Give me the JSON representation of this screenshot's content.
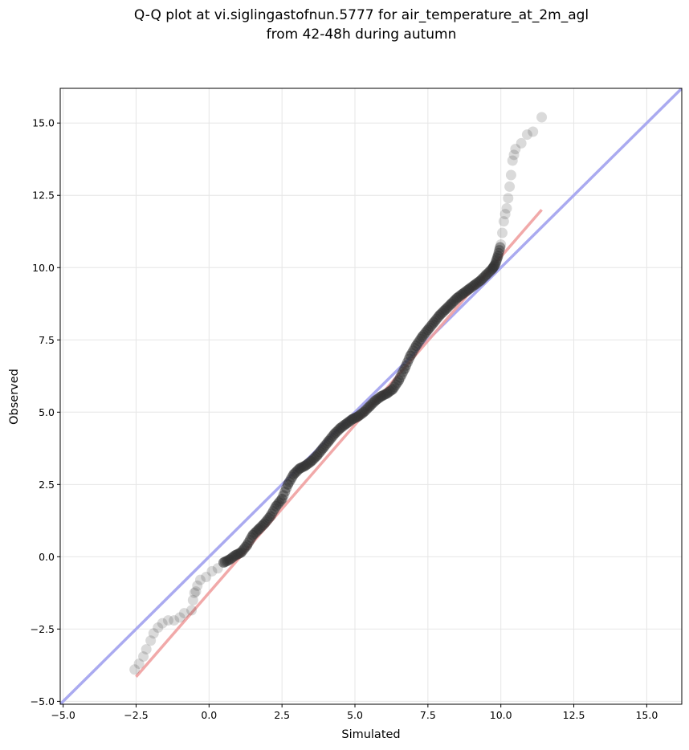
{
  "chart_data": {
    "type": "scatter",
    "title": [
      "Q-Q plot at vi.siglingastofnun.5777 for air_temperature_at_2m_agl",
      "from 42-48h during autumn"
    ],
    "xlabel": "Simulated",
    "ylabel": "Observed",
    "xlim": [
      -5.1,
      16.2
    ],
    "ylim": [
      -5.1,
      16.2
    ],
    "x_ticks": [
      -5.0,
      -2.5,
      0.0,
      2.5,
      5.0,
      7.5,
      10.0,
      12.5,
      15.0
    ],
    "y_ticks": [
      -5.0,
      -2.5,
      0.0,
      2.5,
      5.0,
      7.5,
      10.0,
      12.5,
      15.0
    ],
    "x_tick_labels": [
      "−5.0",
      "−2.5",
      "0.0",
      "2.5",
      "5.0",
      "7.5",
      "10.0",
      "12.5",
      "15.0"
    ],
    "y_tick_labels": [
      "−5.0",
      "−2.5",
      "0.0",
      "2.5",
      "5.0",
      "7.5",
      "10.0",
      "12.5",
      "15.0"
    ],
    "grid": true,
    "colors": {
      "points": "#333333",
      "identity_line": "#aaaaf0",
      "fit_line": "#f0a0a0"
    },
    "identity_line": {
      "x": [
        -5.1,
        16.2
      ],
      "y": [
        -5.1,
        16.2
      ]
    },
    "fit_line": {
      "x": [
        -2.5,
        11.4
      ],
      "y": [
        -4.15,
        12.0
      ]
    },
    "quantiles": {
      "x": [
        -2.55,
        -2.4,
        -2.25,
        -2.15,
        -2.0,
        -1.9,
        -1.75,
        -1.6,
        -1.4,
        -1.2,
        -1.0,
        -0.85,
        -0.6,
        -0.55,
        -0.5,
        -0.45,
        -0.4,
        -0.3,
        -0.1,
        0.1,
        0.3,
        0.5,
        0.7,
        0.9,
        1.1,
        1.3,
        1.5,
        1.7,
        1.9,
        2.1,
        2.3,
        2.5,
        2.7,
        2.9,
        3.1,
        3.3,
        3.5,
        3.7,
        3.9,
        4.1,
        4.3,
        4.5,
        4.7,
        4.9,
        5.1,
        5.3,
        5.5,
        5.7,
        5.9,
        6.1,
        6.3,
        6.5,
        6.7,
        6.9,
        7.1,
        7.3,
        7.5,
        7.7,
        7.9,
        8.1,
        8.3,
        8.5,
        8.7,
        8.9,
        9.1,
        9.3,
        9.5,
        9.7,
        9.8,
        9.9,
        10.0,
        10.05,
        10.1,
        10.15,
        10.2,
        10.25,
        10.3,
        10.35,
        10.4,
        10.45,
        10.5,
        10.7,
        10.9,
        11.1,
        11.4
      ],
      "y": [
        -3.9,
        -3.7,
        -3.45,
        -3.2,
        -2.9,
        -2.65,
        -2.45,
        -2.3,
        -2.2,
        -2.2,
        -2.1,
        -1.95,
        -1.85,
        -1.5,
        -1.25,
        -1.2,
        -1.0,
        -0.8,
        -0.7,
        -0.5,
        -0.4,
        -0.2,
        -0.1,
        0.05,
        0.15,
        0.4,
        0.75,
        0.95,
        1.15,
        1.4,
        1.75,
        2.0,
        2.5,
        2.85,
        3.05,
        3.15,
        3.3,
        3.5,
        3.75,
        4.0,
        4.25,
        4.45,
        4.6,
        4.75,
        4.85,
        5.0,
        5.2,
        5.4,
        5.55,
        5.65,
        5.8,
        6.1,
        6.5,
        6.95,
        7.3,
        7.6,
        7.85,
        8.1,
        8.35,
        8.55,
        8.75,
        8.95,
        9.1,
        9.25,
        9.4,
        9.55,
        9.75,
        9.95,
        10.1,
        10.4,
        10.8,
        11.2,
        11.6,
        11.85,
        12.05,
        12.4,
        12.8,
        13.2,
        13.7,
        13.9,
        14.1,
        14.3,
        14.6,
        14.7,
        15.2
      ]
    }
  }
}
